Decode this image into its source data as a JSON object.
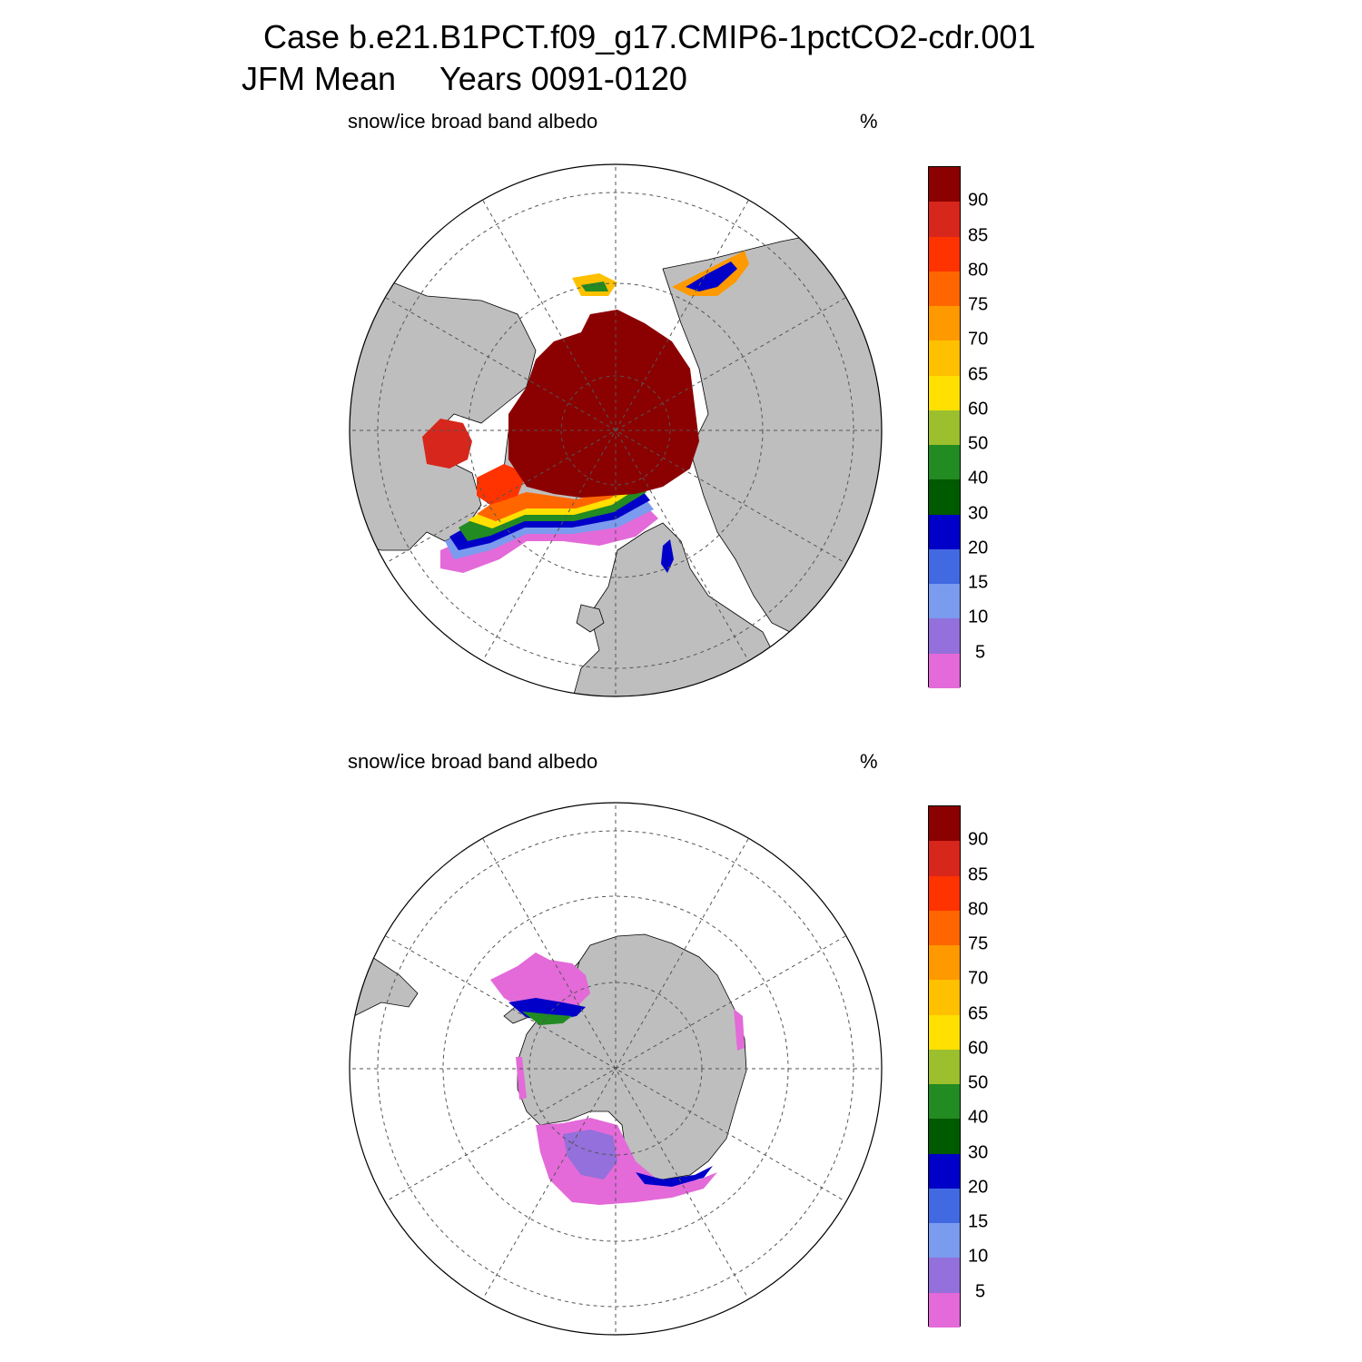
{
  "title": {
    "line1": "Case b.e21.B1PCT.f09_g17.CMIP6-1pctCO2-cdr.001",
    "season": "JFM Mean",
    "years": "Years 0091-0120"
  },
  "panels": [
    {
      "id": "north",
      "label": "snow/ice broad band albedo",
      "units": "%"
    },
    {
      "id": "south",
      "label": "snow/ice broad band albedo",
      "units": "%"
    }
  ],
  "colorbar": {
    "labels": [
      "90",
      "85",
      "80",
      "75",
      "70",
      "65",
      "60",
      "50",
      "40",
      "30",
      "20",
      "15",
      "10",
      "5"
    ],
    "colors_top_to_bottom": [
      "#8b0000",
      "#d7261b",
      "#ff3300",
      "#ff6600",
      "#ff9900",
      "#ffc000",
      "#ffe000",
      "#9cbf2e",
      "#228b22",
      "#005a00",
      "#0000c8",
      "#4169e1",
      "#7b9bef",
      "#9370db",
      "#e36ad8"
    ]
  },
  "colors": {
    "land": "#bebebe",
    "ocean": "#ffffff",
    "grid": "#555555"
  }
}
